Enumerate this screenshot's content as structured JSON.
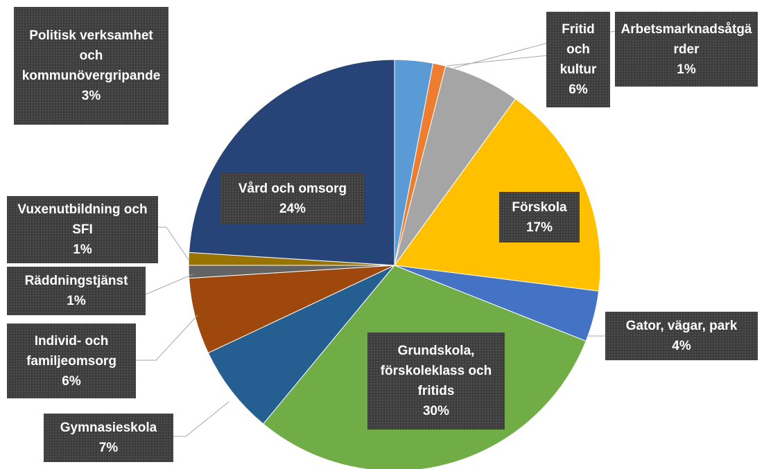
{
  "chart_data": {
    "type": "pie",
    "categories": [
      "Politisk verksamhet och kommunövergripande",
      "Arbetsmarknadsåtgärder",
      "Fritid och kultur",
      "Förskola",
      "Gator, vägar, park",
      "Grundskola, förskoleklass och fritids",
      "Gymnasieskola",
      "Individ- och familjeomsorg",
      "Räddningstjänst",
      "Vuxenutbildning och SFI",
      "Vård och omsorg"
    ],
    "values": [
      3,
      1,
      6,
      17,
      4,
      30,
      7,
      6,
      1,
      1,
      24
    ],
    "value_labels": [
      "3%",
      "1%",
      "6%",
      "17%",
      "4%",
      "30%",
      "7%",
      "6%",
      "1%",
      "1%",
      "24%"
    ],
    "colors": [
      "#5b9bd5",
      "#ed7d31",
      "#a5a5a5",
      "#ffc000",
      "#4472c4",
      "#70ad47",
      "#255e91",
      "#9e480e",
      "#636363",
      "#997300",
      "#264478"
    ]
  }
}
